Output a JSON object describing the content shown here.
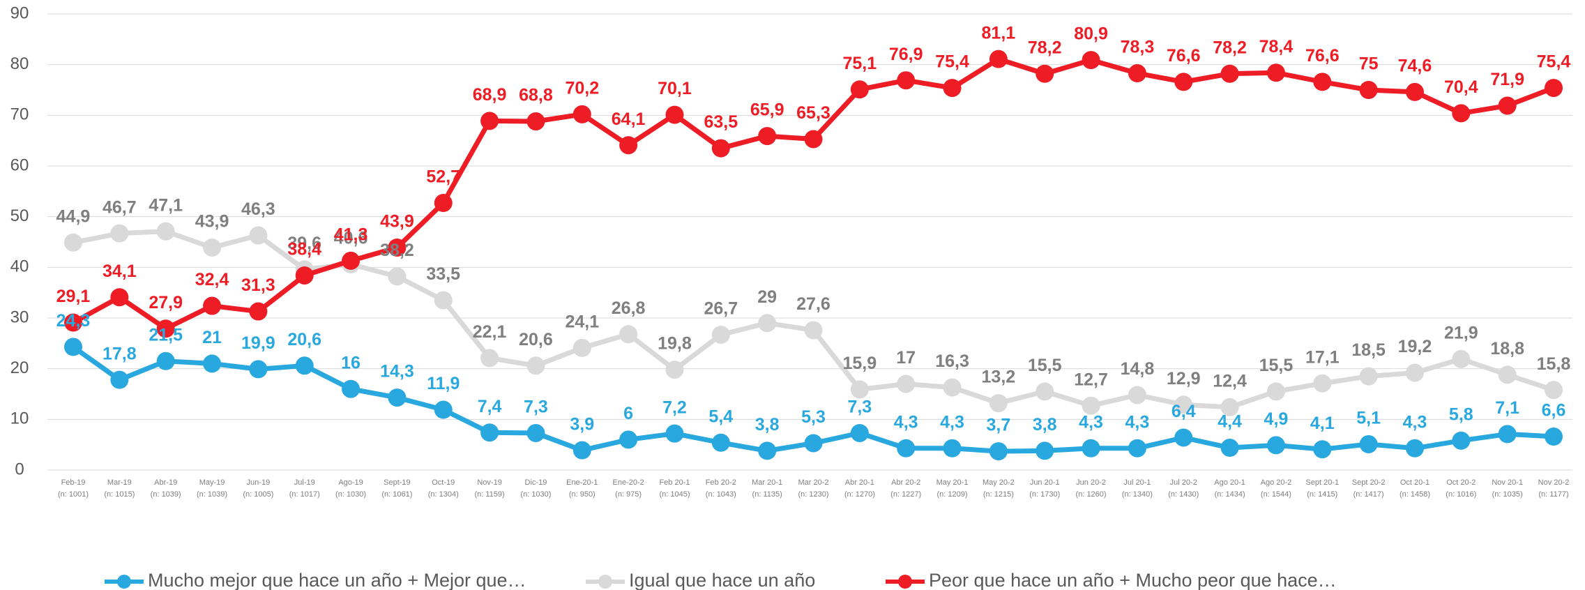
{
  "chart_data": {
    "type": "line",
    "categories": [
      "Feb-19",
      "Mar-19",
      "Abr-19",
      "May-19",
      "Jun-19",
      "Jul-19",
      "Ago-19",
      "Sept-19",
      "Oct-19",
      "Nov-19",
      "Dic-19",
      "Ene-20-1",
      "Ene-20-2",
      "Feb 20-1",
      "Feb 20-2",
      "Mar 20-1",
      "Mar 20-2",
      "Abr 20-1",
      "Abr 20-2",
      "May 20-1",
      "May 20-2",
      "Jun 20-1",
      "Jun 20-2",
      "Jul 20-1",
      "Jul 20-2",
      "Ago 20-1",
      "Ago 20-2",
      "Sept 20-1",
      "Sept 20-2",
      "Oct 20-1",
      "Oct 20-2",
      "Nov 20-1",
      "Nov 20-2"
    ],
    "sample_sizes": [
      "(n: 1001)",
      "(n: 1015)",
      "(n: 1039)",
      "(n: 1039)",
      "(n: 1005)",
      "(n: 1017)",
      "(n: 1030)",
      "(n: 1061)",
      "(n: 1304)",
      "(n: 1159)",
      "(n: 1030)",
      "(n: 950)",
      "(n: 975)",
      "(n: 1045)",
      "(n: 1043)",
      "(n: 1135)",
      "(n: 1230)",
      "(n: 1270)",
      "(n: 1227)",
      "(n: 1209)",
      "(n: 1215)",
      "(n: 1730)",
      "(n: 1260)",
      "(n: 1340)",
      "(n: 1430)",
      "(n: 1434)",
      "(n: 1544)",
      "(n: 1415)",
      "(n: 1417)",
      "(n: 1458)",
      "(n: 1016)",
      "(n: 1035)",
      "(n: 1177)"
    ],
    "series": [
      {
        "name": "Mucho mejor que hace un año + Mejor que…",
        "color": "#29a8e0",
        "label_color": "#29a8e0",
        "values": [
          24.3,
          17.8,
          21.5,
          21,
          19.9,
          20.6,
          16,
          14.3,
          11.9,
          7.4,
          7.3,
          3.9,
          6,
          7.2,
          5.4,
          3.8,
          5.3,
          7.3,
          4.3,
          4.3,
          3.7,
          3.8,
          4.3,
          4.3,
          6.4,
          4.4,
          4.9,
          4.1,
          5.1,
          4.3,
          5.8,
          7.1,
          6.6
        ],
        "value_labels": [
          "24,3",
          "17,8",
          "21,5",
          "21",
          "19,9",
          "20,6",
          "16",
          "14,3",
          "11,9",
          "7,4",
          "7,3",
          "3,9",
          "6",
          "7,2",
          "5,4",
          "3,8",
          "5,3",
          "7,3",
          "4,3",
          "4,3",
          "3,7",
          "3,8",
          "4,3",
          "4,3",
          "6,4",
          "4,4",
          "4,9",
          "4,1",
          "5,1",
          "4,3",
          "5,8",
          "7,1",
          "6,6"
        ]
      },
      {
        "name": "Igual que hace un año",
        "color": "#d9d9d9",
        "label_color": "#7f7f7f",
        "values": [
          44.9,
          46.7,
          47.1,
          43.9,
          46.3,
          39.6,
          40.6,
          38.2,
          33.5,
          22.1,
          20.6,
          24.1,
          26.8,
          19.8,
          26.7,
          29,
          27.6,
          15.9,
          17,
          16.3,
          13.2,
          15.5,
          12.7,
          14.8,
          12.9,
          12.4,
          15.5,
          17.1,
          18.5,
          19.2,
          21.9,
          18.8,
          15.8
        ],
        "value_labels": [
          "44,9",
          "46,7",
          "47,1",
          "43,9",
          "46,3",
          "39,6",
          "40,6",
          "38,2",
          "33,5",
          "22,1",
          "20,6",
          "24,1",
          "26,8",
          "19,8",
          "26,7",
          "29",
          "27,6",
          "15,9",
          "17",
          "16,3",
          "13,2",
          "15,5",
          "12,7",
          "14,8",
          "12,9",
          "12,4",
          "15,5",
          "17,1",
          "18,5",
          "19,2",
          "21,9",
          "18,8",
          "15,8"
        ]
      },
      {
        "name": "Peor que hace un año + Mucho peor que hace…",
        "color": "#ee1c25",
        "label_color": "#ee1c25",
        "values": [
          29.1,
          34.1,
          27.9,
          32.4,
          31.3,
          38.4,
          41.3,
          43.9,
          52.7,
          68.9,
          68.8,
          70.2,
          64.1,
          70.1,
          63.5,
          65.9,
          65.3,
          75.1,
          76.9,
          75.4,
          81.1,
          78.2,
          80.9,
          78.3,
          76.6,
          78.2,
          78.4,
          76.6,
          75,
          74.6,
          70.4,
          71.9,
          75.4
        ],
        "value_labels": [
          "29,1",
          "34,1",
          "27,9",
          "32,4",
          "31,3",
          "38,4",
          "41,3",
          "43,9",
          "52,7",
          "68,9",
          "68,8",
          "70,2",
          "64,1",
          "70,1",
          "63,5",
          "65,9",
          "65,3",
          "75,1",
          "76,9",
          "75,4",
          "81,1",
          "78,2",
          "80,9",
          "78,3",
          "76,6",
          "78,2",
          "78,4",
          "76,6",
          "75",
          "74,6",
          "70,4",
          "71,9",
          "75,4"
        ]
      }
    ],
    "ylim": [
      0,
      90
    ],
    "yticks": [
      0,
      10,
      20,
      30,
      40,
      50,
      60,
      70,
      80,
      90
    ],
    "grid": true,
    "legend": "bottom"
  }
}
